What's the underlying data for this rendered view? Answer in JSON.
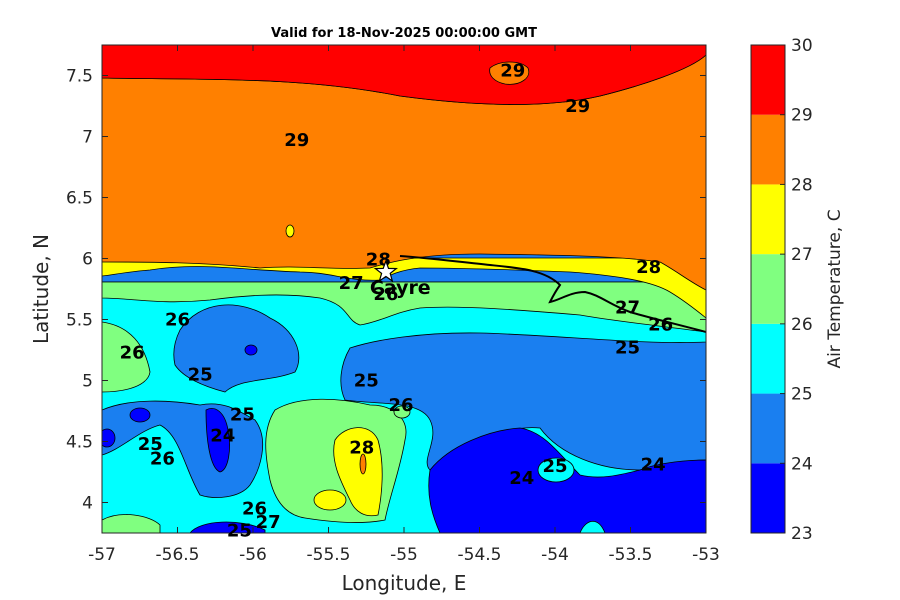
{
  "chart_data": {
    "type": "contour",
    "title": "Valid for 18-Nov-2025 00:00:00 GMT",
    "xlabel": "Longitude, E",
    "ylabel": "Latitude, N",
    "xlim": [
      -57,
      -53
    ],
    "ylim": [
      3.75,
      7.75
    ],
    "xticks": [
      "-57",
      "-56.5",
      "-56",
      "-55.5",
      "-55",
      "-54.5",
      "-54",
      "-53.5",
      "-53"
    ],
    "yticks": [
      "4",
      "4.5",
      "5",
      "5.5",
      "6",
      "6.5",
      "7",
      "7.5"
    ],
    "colorbar": {
      "label": "Air Temperature, C",
      "levels": [
        23,
        24,
        25,
        26,
        27,
        28,
        29,
        30
      ],
      "tick_labels": [
        "23",
        "24",
        "25",
        "26",
        "27",
        "28",
        "29",
        "30"
      ],
      "colors": [
        "#0000ff",
        "#1a7ff0",
        "#00ffff",
        "#80ff80",
        "#ffff00",
        "#ff8000",
        "#ff0000",
        "#800000"
      ]
    },
    "contour_labels": [
      {
        "text": "29",
        "lon": -54.28,
        "lat": 7.54
      },
      {
        "text": "29",
        "lon": -53.85,
        "lat": 7.25
      },
      {
        "text": "29",
        "lon": -55.71,
        "lat": 6.97
      },
      {
        "text": "28",
        "lon": -55.17,
        "lat": 5.99
      },
      {
        "text": "27",
        "lon": -55.35,
        "lat": 5.8
      },
      {
        "text": "26",
        "lon": -56.5,
        "lat": 5.5
      },
      {
        "text": "26",
        "lon": -56.8,
        "lat": 5.23
      },
      {
        "text": "25",
        "lon": -56.35,
        "lat": 5.05
      },
      {
        "text": "25",
        "lon": -55.25,
        "lat": 5.0
      },
      {
        "text": "25",
        "lon": -56.07,
        "lat": 4.72
      },
      {
        "text": "24",
        "lon": -56.2,
        "lat": 4.55
      },
      {
        "text": "25",
        "lon": -56.68,
        "lat": 4.48
      },
      {
        "text": "26",
        "lon": -56.6,
        "lat": 4.36
      },
      {
        "text": "26",
        "lon": -55.02,
        "lat": 4.8
      },
      {
        "text": "28",
        "lon": -55.28,
        "lat": 4.45
      },
      {
        "text": "26",
        "lon": -55.99,
        "lat": 3.95
      },
      {
        "text": "27",
        "lon": -55.9,
        "lat": 3.84
      },
      {
        "text": "25",
        "lon": -56.09,
        "lat": 3.77
      },
      {
        "text": "24",
        "lon": -54.22,
        "lat": 4.2
      },
      {
        "text": "25",
        "lon": -54.0,
        "lat": 4.3
      },
      {
        "text": "24",
        "lon": -53.35,
        "lat": 4.31
      },
      {
        "text": "28",
        "lon": -53.38,
        "lat": 5.93
      },
      {
        "text": "27",
        "lon": -53.52,
        "lat": 5.6
      },
      {
        "text": "26",
        "lon": -53.3,
        "lat": 5.46
      },
      {
        "text": "25",
        "lon": -53.52,
        "lat": 5.27
      },
      {
        "text": "26",
        "lon": -55.12,
        "lat": 5.71
      }
    ],
    "places": [
      {
        "name": "Cayre",
        "lon": -55.12,
        "lat": 5.84
      }
    ],
    "grid": false
  },
  "icons": {
    "place_marker": "star-icon"
  }
}
